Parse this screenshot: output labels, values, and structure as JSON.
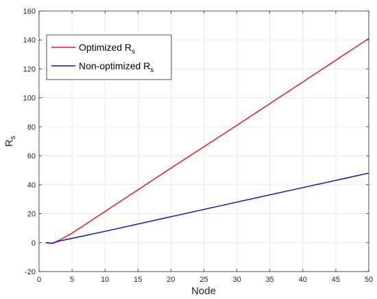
{
  "chart_data": {
    "type": "line",
    "xlabel": "Node",
    "ylabel": "R_s",
    "ylabel_main": "R",
    "ylabel_sub": "s",
    "xlim": [
      0,
      50
    ],
    "ylim": [
      -20,
      160
    ],
    "xticks": [
      0,
      5,
      10,
      15,
      20,
      25,
      30,
      35,
      40,
      45,
      50
    ],
    "yticks": [
      -20,
      0,
      20,
      40,
      60,
      80,
      100,
      120,
      140,
      160
    ],
    "grid": true,
    "legend_position": "top-left",
    "series": [
      {
        "name": "Optimized R_s",
        "name_main": "Optimized R",
        "name_sub": "s",
        "color": "#e31a1c",
        "x": [
          1,
          2,
          3,
          5,
          7,
          10,
          20,
          30,
          40,
          50
        ],
        "y": [
          0,
          -0.5,
          1.5,
          6.5,
          12.5,
          21.5,
          51.5,
          81,
          111,
          141
        ]
      },
      {
        "name": "Non-optimized R_s",
        "name_main": "Non-optimized R",
        "name_sub": "s",
        "color": "#1010d0",
        "x": [
          1,
          2,
          3,
          10,
          20,
          30,
          40,
          50
        ],
        "y": [
          0,
          -0.5,
          1,
          7.8,
          17.9,
          28,
          38,
          48
        ]
      }
    ]
  }
}
